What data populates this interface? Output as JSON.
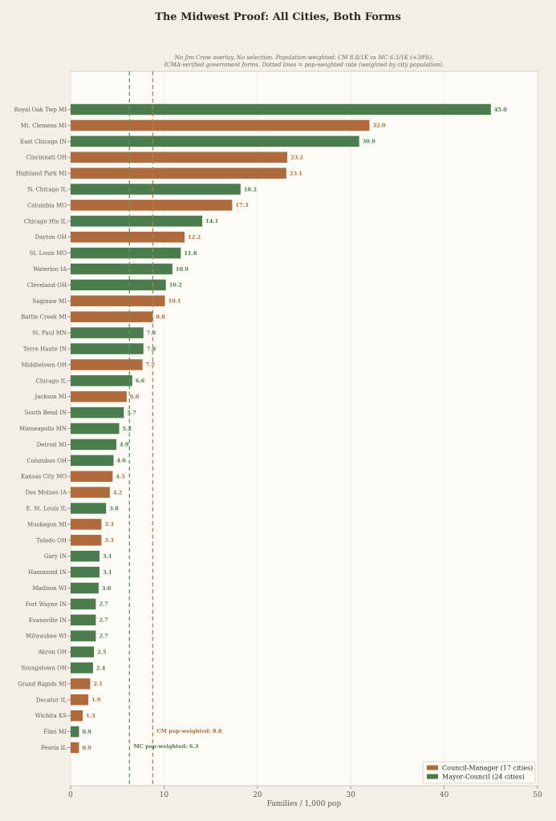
{
  "title": "The Midwest Proof: All Cities, Both Forms",
  "subtitle": {
    "line1": "No Jim Crow overlay. No selection. Population-weighted: CM 8.8/1K vs MC 6.3/1K (+39%).",
    "line2": "ICMA-verified government forms. Dotted lines = pop-weighted rate (weighted by city population)."
  },
  "colors": {
    "cm": "#b06b3d",
    "mc": "#4a7c4e",
    "cm_line": "#c47a50",
    "mc_line": "#5a9a5e",
    "plot_bg": "#fdfbf5"
  },
  "chart_data": {
    "type": "bar",
    "orientation": "horizontal",
    "title": "The Midwest Proof: All Cities, Both Forms",
    "xlabel": "Families / 1,000 pop",
    "ylabel": "",
    "xlim": [
      0,
      50
    ],
    "xticks": [
      0,
      10,
      20,
      30,
      40,
      50
    ],
    "grid": true,
    "legend_position": "bottom-right",
    "legend": [
      {
        "form": "CM",
        "label": "Council-Manager (17 cities)"
      },
      {
        "form": "MC",
        "label": "Mayor-Council (24 cities)"
      }
    ],
    "reference_lines": [
      {
        "form": "CM",
        "value": 8.8,
        "label": "CM pop-weighted: 8.8"
      },
      {
        "form": "MC",
        "value": 6.3,
        "label": "MC pop-weighted: 6.3"
      }
    ],
    "bars": [
      {
        "city": "Royal Oak Twp MI",
        "value": 45.0,
        "form": "MC"
      },
      {
        "city": "Mt. Clemens MI",
        "value": 32.0,
        "form": "CM"
      },
      {
        "city": "East Chicago IN",
        "value": 30.9,
        "form": "MC"
      },
      {
        "city": "Cincinnati OH",
        "value": 23.2,
        "form": "CM"
      },
      {
        "city": "Highland Park MI",
        "value": 23.1,
        "form": "CM"
      },
      {
        "city": "N. Chicago IL",
        "value": 18.2,
        "form": "MC"
      },
      {
        "city": "Columbia MO",
        "value": 17.3,
        "form": "CM"
      },
      {
        "city": "Chicago Hts IL",
        "value": 14.1,
        "form": "MC"
      },
      {
        "city": "Dayton OH",
        "value": 12.2,
        "form": "CM"
      },
      {
        "city": "St. Louis MO",
        "value": 11.8,
        "form": "MC"
      },
      {
        "city": "Waterloo IA",
        "value": 10.9,
        "form": "MC"
      },
      {
        "city": "Cleveland OH",
        "value": 10.2,
        "form": "MC"
      },
      {
        "city": "Saginaw MI",
        "value": 10.1,
        "form": "CM"
      },
      {
        "city": "Battle Creek MI",
        "value": 8.8,
        "form": "CM"
      },
      {
        "city": "St. Paul MN",
        "value": 7.8,
        "form": "MC"
      },
      {
        "city": "Terre Haute IN",
        "value": 7.8,
        "form": "MC"
      },
      {
        "city": "Middletown OH",
        "value": 7.7,
        "form": "CM"
      },
      {
        "city": "Chicago IL",
        "value": 6.6,
        "form": "MC"
      },
      {
        "city": "Jackson MI",
        "value": 6.0,
        "form": "CM"
      },
      {
        "city": "South Bend IN",
        "value": 5.7,
        "form": "MC"
      },
      {
        "city": "Minneapolis MN",
        "value": 5.2,
        "form": "MC"
      },
      {
        "city": "Detroit MI",
        "value": 4.9,
        "form": "MC"
      },
      {
        "city": "Columbus OH",
        "value": 4.6,
        "form": "MC"
      },
      {
        "city": "Kansas City MO",
        "value": 4.5,
        "form": "CM"
      },
      {
        "city": "Des Moines IA",
        "value": 4.2,
        "form": "CM"
      },
      {
        "city": "E. St. Louis IL",
        "value": 3.8,
        "form": "MC"
      },
      {
        "city": "Muskegon MI",
        "value": 3.3,
        "form": "CM"
      },
      {
        "city": "Toledo OH",
        "value": 3.3,
        "form": "CM"
      },
      {
        "city": "Gary IN",
        "value": 3.1,
        "form": "MC"
      },
      {
        "city": "Hammond IN",
        "value": 3.1,
        "form": "MC"
      },
      {
        "city": "Madison WI",
        "value": 3.0,
        "form": "MC"
      },
      {
        "city": "Fort Wayne IN",
        "value": 2.7,
        "form": "MC"
      },
      {
        "city": "Evansville IN",
        "value": 2.7,
        "form": "MC"
      },
      {
        "city": "Milwaukee WI",
        "value": 2.7,
        "form": "MC"
      },
      {
        "city": "Akron OH",
        "value": 2.5,
        "form": "MC"
      },
      {
        "city": "Youngstown OH",
        "value": 2.4,
        "form": "MC"
      },
      {
        "city": "Grand Rapids MI",
        "value": 2.1,
        "form": "CM"
      },
      {
        "city": "Decatur IL",
        "value": 1.9,
        "form": "CM"
      },
      {
        "city": "Wichita KS",
        "value": 1.3,
        "form": "CM"
      },
      {
        "city": "Flint MI",
        "value": 0.9,
        "form": "MC"
      },
      {
        "city": "Peoria IL",
        "value": 0.9,
        "form": "CM"
      }
    ]
  }
}
